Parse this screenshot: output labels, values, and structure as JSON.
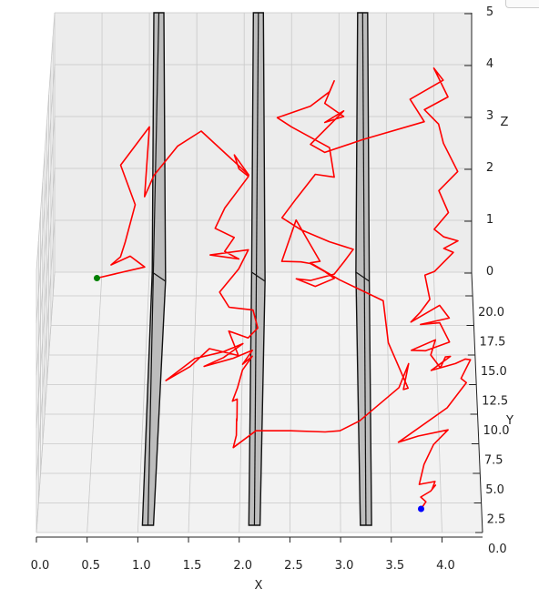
{
  "chart_data": {
    "type": "line",
    "projection": "3d",
    "xlabel": "X",
    "ylabel": "Y",
    "zlabel": "Z",
    "xlim": [
      0,
      4.4
    ],
    "ylim": [
      0,
      22
    ],
    "zlim": [
      0,
      5
    ],
    "x_ticks": [
      "0.0",
      "0.5",
      "1.0",
      "1.5",
      "2.0",
      "2.5",
      "3.0",
      "3.5",
      "4.0"
    ],
    "y_ticks": [
      "0.0",
      "2.5",
      "5.0",
      "7.5",
      "10.0",
      "12.5",
      "15.0",
      "17.5",
      "20.0"
    ],
    "z_ticks": [
      "0",
      "1",
      "2",
      "3",
      "4",
      "5"
    ],
    "grid": true,
    "pillars": [
      {
        "x": 1.1,
        "y_range": [
          0,
          22
        ],
        "z_range": [
          0,
          5
        ]
      },
      {
        "x": 2.15,
        "y_range": [
          0,
          22
        ],
        "z_range": [
          0,
          5
        ]
      },
      {
        "x": 3.25,
        "y_range": [
          0,
          22
        ],
        "z_range": [
          0,
          5
        ]
      }
    ],
    "path_color": "#ff0000",
    "start_point": {
      "x": 0.45,
      "y": 21.5,
      "z": 0,
      "color": "#008000"
    },
    "end_point": {
      "x": 3.8,
      "y": 2.0,
      "z": 0,
      "color": "#0000ff"
    },
    "path_points": [
      [
        0.45,
        21.5,
        0.0
      ],
      [
        0.95,
        22.0,
        0.1
      ],
      [
        0.8,
        21.6,
        0.4
      ],
      [
        0.6,
        21.3,
        0.3
      ],
      [
        0.7,
        21.1,
        0.5
      ],
      [
        0.75,
        21.0,
        0.8
      ],
      [
        0.85,
        22.0,
        1.3
      ],
      [
        0.7,
        21.4,
        2.2
      ],
      [
        1.0,
        22.0,
        2.8
      ],
      [
        0.95,
        21.8,
        1.5
      ],
      [
        1.05,
        21.4,
        2.0
      ],
      [
        1.3,
        21.7,
        2.5
      ],
      [
        1.55,
        21.2,
        2.9
      ],
      [
        2.05,
        21.0,
        2.1
      ],
      [
        1.9,
        20.5,
        2.6
      ],
      [
        1.95,
        20.2,
        2.4
      ],
      [
        2.05,
        20.0,
        2.3
      ],
      [
        1.8,
        20.4,
        1.6
      ],
      [
        1.7,
        20.0,
        1.3
      ],
      [
        1.9,
        20.1,
        1.1
      ],
      [
        1.8,
        19.8,
        0.9
      ],
      [
        1.95,
        19.6,
        0.8
      ],
      [
        1.65,
        19.5,
        0.9
      ],
      [
        2.05,
        19.5,
        1.0
      ],
      [
        1.95,
        19.2,
        0.7
      ],
      [
        1.75,
        19.0,
        0.3
      ],
      [
        1.85,
        18.6,
        0.1
      ],
      [
        2.1,
        18.8,
        0.0
      ],
      [
        2.15,
        18.6,
        -0.3
      ],
      [
        2.05,
        18.2,
        -0.4
      ],
      [
        1.85,
        17.9,
        -0.2
      ],
      [
        1.95,
        17.6,
        -0.6
      ],
      [
        1.65,
        17.3,
        -0.4
      ],
      [
        1.45,
        17.1,
        -0.7
      ],
      [
        1.2,
        16.8,
        -0.9
      ],
      [
        1.5,
        16.9,
        -0.5
      ],
      [
        1.8,
        16.6,
        -0.3
      ],
      [
        2.0,
        16.4,
        -0.1
      ],
      [
        1.8,
        16.1,
        -0.3
      ],
      [
        1.6,
        15.8,
        -0.4
      ],
      [
        1.9,
        15.6,
        -0.2
      ],
      [
        2.1,
        15.4,
        0.0
      ],
      [
        2.0,
        15.1,
        -0.2
      ],
      [
        2.1,
        14.9,
        0.0
      ],
      [
        2.0,
        14.6,
        -0.2
      ],
      [
        1.95,
        14.0,
        -0.4
      ],
      [
        1.9,
        13.3,
        -0.5
      ],
      [
        1.95,
        12.6,
        -0.3
      ],
      [
        1.95,
        11.9,
        -0.5
      ],
      [
        1.95,
        11.2,
        -0.4
      ],
      [
        1.95,
        10.5,
        -0.2
      ],
      [
        1.95,
        9.8,
        -0.1
      ],
      [
        1.95,
        9.1,
        -0.2
      ],
      [
        1.92,
        8.5,
        -0.3
      ],
      [
        2.15,
        8.6,
        0.0
      ],
      [
        2.5,
        8.6,
        0.0
      ],
      [
        2.85,
        8.5,
        0.0
      ],
      [
        3.0,
        8.6,
        0.0
      ],
      [
        3.2,
        9.0,
        0.1
      ],
      [
        3.6,
        9.6,
        0.6
      ],
      [
        3.7,
        10.3,
        0.9
      ],
      [
        3.65,
        11.2,
        0.2
      ],
      [
        3.7,
        12.2,
        0.0
      ],
      [
        3.5,
        13.4,
        0.6
      ],
      [
        3.45,
        14.3,
        1.2
      ],
      [
        3.0,
        15.2,
        1.4
      ],
      [
        2.7,
        16.2,
        1.5
      ],
      [
        2.8,
        17.2,
        1.3
      ],
      [
        2.55,
        18.5,
        1.8
      ],
      [
        2.4,
        19.4,
        0.8
      ],
      [
        2.6,
        19.8,
        0.7
      ],
      [
        2.7,
        20.1,
        0.6
      ],
      [
        2.85,
        20.3,
        0.4
      ],
      [
        2.95,
        20.6,
        0.2
      ],
      [
        2.75,
        20.8,
        0.0
      ],
      [
        2.55,
        21.0,
        0.1
      ],
      [
        2.7,
        21.3,
        0.0
      ],
      [
        2.95,
        21.4,
        0.1
      ],
      [
        3.05,
        21.1,
        0.4
      ],
      [
        3.15,
        21.3,
        0.6
      ],
      [
        2.9,
        21.5,
        0.7
      ],
      [
        2.6,
        21.2,
        1.0
      ],
      [
        2.4,
        20.9,
        1.3
      ],
      [
        2.55,
        21.2,
        1.6
      ],
      [
        2.75,
        21.5,
        2.0
      ],
      [
        2.95,
        21.7,
        1.9
      ],
      [
        2.9,
        22.0,
        2.4
      ],
      [
        2.5,
        22.0,
        2.8
      ],
      [
        2.35,
        21.9,
        3.0
      ],
      [
        2.7,
        22.0,
        3.2
      ],
      [
        2.9,
        21.9,
        3.5
      ],
      [
        2.95,
        21.5,
        3.8
      ],
      [
        2.85,
        21.8,
        3.3
      ],
      [
        3.05,
        22.0,
        3.0
      ],
      [
        2.85,
        21.5,
        3.0
      ],
      [
        3.05,
        21.6,
        3.2
      ],
      [
        2.7,
        21.4,
        2.6
      ],
      [
        2.85,
        21.6,
        2.4
      ],
      [
        3.25,
        21.8,
        2.6
      ],
      [
        3.9,
        22.0,
        2.9
      ],
      [
        3.75,
        21.7,
        3.4
      ],
      [
        4.1,
        22.0,
        3.7
      ],
      [
        4.0,
        21.7,
        4.0
      ],
      [
        4.15,
        21.9,
        3.4
      ],
      [
        3.9,
        21.7,
        3.2
      ],
      [
        4.05,
        21.8,
        2.9
      ],
      [
        4.1,
        21.5,
        2.6
      ],
      [
        4.25,
        21.3,
        2.1
      ],
      [
        4.05,
        21.0,
        1.8
      ],
      [
        4.15,
        20.9,
        1.4
      ],
      [
        4.0,
        20.8,
        1.1
      ],
      [
        4.1,
        20.6,
        1.0
      ],
      [
        4.25,
        20.7,
        0.9
      ],
      [
        4.1,
        20.5,
        0.8
      ],
      [
        4.2,
        20.6,
        0.7
      ],
      [
        4.0,
        20.3,
        0.4
      ],
      [
        3.9,
        20.0,
        0.4
      ],
      [
        3.95,
        19.7,
        0.0
      ],
      [
        3.85,
        19.5,
        -0.2
      ],
      [
        3.75,
        19.1,
        -0.3
      ],
      [
        4.05,
        19.2,
        0.0
      ],
      [
        4.15,
        19.0,
        -0.2
      ],
      [
        3.85,
        18.9,
        -0.3
      ],
      [
        4.05,
        18.6,
        -0.2
      ],
      [
        4.15,
        18.3,
        -0.5
      ],
      [
        3.9,
        18.0,
        -0.6
      ],
      [
        3.75,
        17.6,
        -0.5
      ],
      [
        4.0,
        17.6,
        -0.3
      ],
      [
        3.95,
        17.2,
        -0.5
      ],
      [
        4.05,
        17.0,
        -0.7
      ],
      [
        4.1,
        16.6,
        -0.4
      ],
      [
        4.15,
        16.2,
        -0.3
      ],
      [
        3.95,
        15.9,
        -0.5
      ],
      [
        4.2,
        15.6,
        -0.3
      ],
      [
        4.3,
        15.1,
        -0.1
      ],
      [
        4.35,
        14.6,
        0.0
      ],
      [
        4.25,
        13.9,
        -0.2
      ],
      [
        4.3,
        13.1,
        -0.1
      ],
      [
        4.1,
        12.3,
        -0.4
      ],
      [
        3.6,
        11.6,
        -0.9
      ],
      [
        3.8,
        10.8,
        -0.6
      ],
      [
        4.1,
        10.0,
        -0.3
      ],
      [
        3.95,
        9.2,
        -0.4
      ],
      [
        3.85,
        8.4,
        -0.6
      ],
      [
        3.8,
        7.6,
        -0.8
      ],
      [
        3.85,
        6.8,
        -0.6
      ],
      [
        3.9,
        6.0,
        -0.4
      ],
      [
        3.95,
        5.2,
        -0.2
      ],
      [
        3.92,
        4.6,
        -0.2
      ],
      [
        3.95,
        4.0,
        0.0
      ],
      [
        3.9,
        3.5,
        0.0
      ],
      [
        3.8,
        3.0,
        0.0
      ],
      [
        3.85,
        2.6,
        0.0
      ],
      [
        3.8,
        2.0,
        0.0
      ]
    ]
  }
}
